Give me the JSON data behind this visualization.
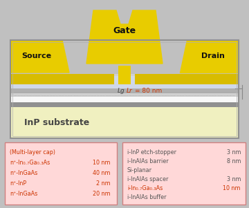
{
  "bg_color": "#c0c0c0",
  "substrate_color": "#f0f0c0",
  "gate_color": "#e8cc00",
  "source_drain_color": "#d8bc00",
  "box_fill": "#ffd8d8",
  "box_edge": "#d08080",
  "red_color": "#cc3300",
  "gray_color": "#555555",
  "layer_dark_gray": "#909090",
  "layer_mid_gray": "#b0b0b0",
  "layer_light_gray": "#d0d0d0",
  "layer_white": "#f8f8f8",
  "layer_etch": "#d0d8e8",
  "device_outline": "#909090",
  "left_items": [
    [
      "(Multi-layer cap)",
      ""
    ],
    [
      "n⁺-In₀.₇Ga₀.₃As",
      "10 nm"
    ],
    [
      "n⁺-InGaAs",
      "40 nm"
    ],
    [
      "n⁺-InP",
      "2 nm"
    ],
    [
      "n⁺-InGaAs",
      "20 nm"
    ]
  ],
  "right_items": [
    [
      "i-InP etch-stopper",
      "3 nm",
      "gray"
    ],
    [
      "i-InAlAs barrier",
      "8 nm",
      "gray"
    ],
    [
      "Si-planar",
      "",
      "gray"
    ],
    [
      "i-InAlAs spacer",
      "3 nm",
      "gray"
    ],
    [
      "i-In₀.₇Ga₀.₃As",
      "10 nm",
      "red"
    ],
    [
      "i-InAlAs buffer",
      "",
      "gray"
    ]
  ]
}
